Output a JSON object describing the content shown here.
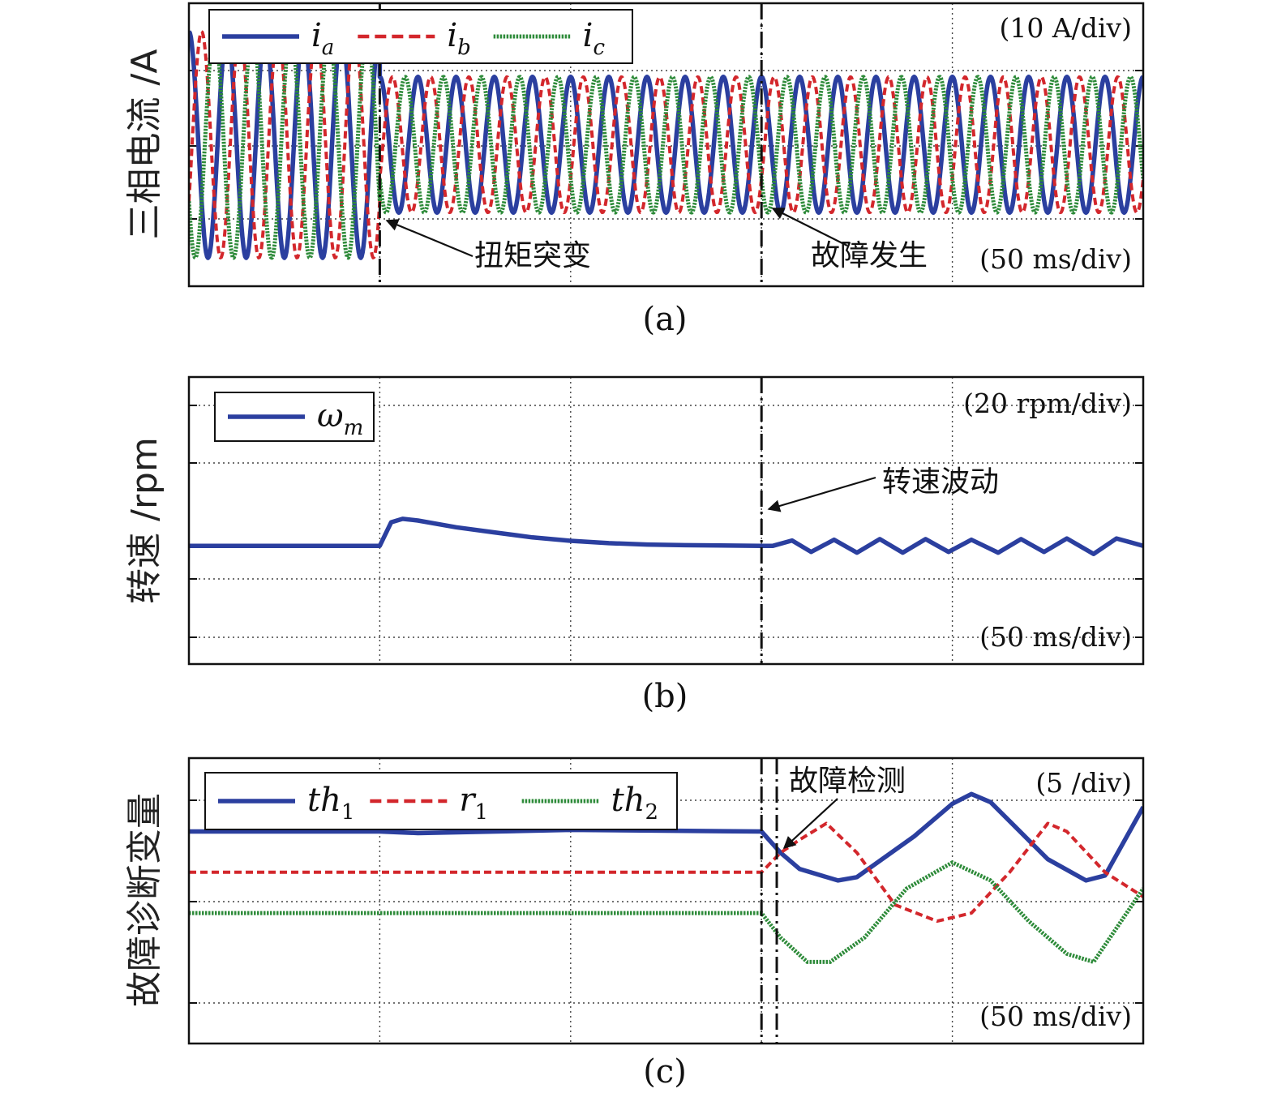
{
  "chart_data": [
    {
      "panel": "(a)",
      "type": "line",
      "ylabel": "三相电流 /A",
      "y_scale_text": "(10 A/div)",
      "x_scale_text": "(50 ms/div)",
      "caption": "(a)",
      "xlim": [
        0,
        250
      ],
      "ylim": [
        -25,
        25
      ],
      "grid": true,
      "legend": "top-left",
      "series": [
        {
          "name": "i_a",
          "sym": "i",
          "sub": "a",
          "color": "#2b3f9f",
          "style": "solid",
          "segments": [
            {
              "t": [
                0,
                50
              ],
              "amp": 20,
              "period": 10,
              "phase_deg": 90
            },
            {
              "t": [
                50,
                250
              ],
              "amp": 12,
              "period": 10,
              "phase_deg": 90
            }
          ]
        },
        {
          "name": "i_b",
          "sym": "i",
          "sub": "b",
          "color": "#d3272c",
          "style": "dashed",
          "segments": [
            {
              "t": [
                0,
                50
              ],
              "amp": 20,
              "period": 10,
              "phase_deg": -30
            },
            {
              "t": [
                50,
                250
              ],
              "amp": 12,
              "period": 10,
              "phase_deg": -30
            }
          ]
        },
        {
          "name": "i_c",
          "sym": "i",
          "sub": "c",
          "color": "#2e8b3a",
          "style": "dotted",
          "segments": [
            {
              "t": [
                0,
                50
              ],
              "amp": 20,
              "period": 10,
              "phase_deg": 210
            },
            {
              "t": [
                50,
                250
              ],
              "amp": 12,
              "period": 10,
              "phase_deg": 210
            }
          ]
        }
      ],
      "annotations": [
        {
          "text": "扭矩突变",
          "x": 50
        },
        {
          "text": "故障发生",
          "x": 150
        }
      ],
      "vlines": [
        50,
        150
      ]
    },
    {
      "panel": "(b)",
      "type": "line",
      "ylabel": "转速 /rpm",
      "y_scale_text": "(20 rpm/div)",
      "x_scale_text": "(50 ms/div)",
      "caption": "(b)",
      "xlim": [
        0,
        250
      ],
      "ylim": [
        -35,
        50
      ],
      "grid": true,
      "legend": "top-left",
      "series": [
        {
          "name": "ω_m",
          "sym": "ω",
          "sub": "m",
          "color": "#2b3f9f",
          "style": "solid",
          "points": [
            [
              0,
              0
            ],
            [
              49,
              0
            ],
            [
              50,
              0
            ],
            [
              53,
              7
            ],
            [
              56,
              8
            ],
            [
              60,
              7.5
            ],
            [
              70,
              5.5
            ],
            [
              80,
              4
            ],
            [
              90,
              2.5
            ],
            [
              100,
              1.5
            ],
            [
              110,
              0.8
            ],
            [
              120,
              0.4
            ],
            [
              130,
              0.2
            ],
            [
              150,
              0
            ],
            [
              153,
              0
            ],
            [
              158,
              1.6
            ],
            [
              163,
              -1.8
            ],
            [
              169,
              1.8
            ],
            [
              175,
              -2
            ],
            [
              181,
              2
            ],
            [
              187,
              -2
            ],
            [
              193,
              2
            ],
            [
              199,
              -1.8
            ],
            [
              205,
              1.8
            ],
            [
              212,
              -2
            ],
            [
              218,
              2
            ],
            [
              224,
              -1.8
            ],
            [
              230,
              2.2
            ],
            [
              237,
              -2.4
            ],
            [
              243,
              2.2
            ],
            [
              250,
              0
            ]
          ]
        }
      ],
      "annotations": [
        {
          "text": "转速波动",
          "x": 150
        }
      ],
      "vlines": [
        150
      ]
    },
    {
      "panel": "(c)",
      "type": "line",
      "ylabel": "故障诊断变量",
      "y_scale_text": "(5 /div)",
      "x_scale_text": "(50 ms/div)",
      "caption": "(c)",
      "xlim": [
        0,
        250
      ],
      "ylim": [
        -10.5,
        7
      ],
      "grid": true,
      "legend": "top-left",
      "series": [
        {
          "name": "th_1",
          "sym": "th",
          "sub": "1",
          "color": "#2b3f9f",
          "style": "solid",
          "points": [
            [
              0,
              2.5
            ],
            [
              50,
              2.5
            ],
            [
              60,
              2.4
            ],
            [
              100,
              2.6
            ],
            [
              150,
              2.5
            ],
            [
              155,
              1.2
            ],
            [
              160,
              0.2
            ],
            [
              170,
              -0.5
            ],
            [
              175,
              -0.3
            ],
            [
              190,
              2.2
            ],
            [
              200,
              4.2
            ],
            [
              205,
              4.8
            ],
            [
              210,
              4.3
            ],
            [
              225,
              0.8
            ],
            [
              235,
              -0.5
            ],
            [
              240,
              -0.2
            ],
            [
              250,
              4
            ]
          ]
        },
        {
          "name": "r_1",
          "sym": "r",
          "sub": "1",
          "color": "#d3272c",
          "style": "dashed",
          "points": [
            [
              0,
              0
            ],
            [
              150,
              0
            ],
            [
              155,
              1.2
            ],
            [
              160,
              2
            ],
            [
              167,
              3
            ],
            [
              175,
              1.2
            ],
            [
              185,
              -2
            ],
            [
              196,
              -3
            ],
            [
              205,
              -2.5
            ],
            [
              215,
              0
            ],
            [
              225,
              3
            ],
            [
              230,
              2.5
            ],
            [
              240,
              0
            ],
            [
              250,
              -1.5
            ]
          ]
        },
        {
          "name": "th_2",
          "sym": "th",
          "sub": "2",
          "color": "#2e8b3a",
          "style": "dotted",
          "points": [
            [
              0,
              -2.5
            ],
            [
              150,
              -2.5
            ],
            [
              155,
              -4
            ],
            [
              162,
              -5.5
            ],
            [
              168,
              -5.5
            ],
            [
              177,
              -4
            ],
            [
              188,
              -1
            ],
            [
              200,
              0.6
            ],
            [
              210,
              -0.5
            ],
            [
              220,
              -3
            ],
            [
              230,
              -5
            ],
            [
              237,
              -5.5
            ],
            [
              250,
              -1
            ]
          ]
        }
      ],
      "annotations": [
        {
          "text": "故障检测",
          "x": 154
        }
      ],
      "vlines": [
        150,
        154
      ]
    }
  ]
}
